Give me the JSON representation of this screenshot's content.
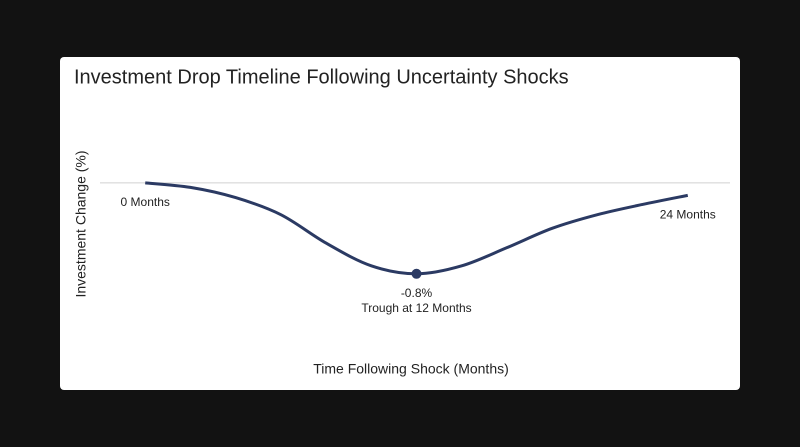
{
  "chart_data": {
    "type": "line",
    "title": "Investment Drop Timeline Following Uncertainty Shocks",
    "x_label": "Time Following Shock (Months)",
    "y_label": "Investment Change (%)",
    "x": [
      0,
      2,
      4,
      6,
      8,
      10,
      12,
      14,
      16,
      18,
      20,
      22,
      24
    ],
    "series": [
      {
        "color": "#2b3a63",
        "values": [
          0,
          -0.04,
          -0.13,
          -0.28,
          -0.53,
          -0.73,
          -0.8,
          -0.73,
          -0.57,
          -0.4,
          -0.28,
          -0.19,
          -0.11
        ],
        "value_labels": [
          null,
          null,
          null,
          null,
          null,
          null,
          "-0.8%",
          null,
          null,
          null,
          null,
          null,
          null
        ]
      }
    ],
    "annotations": [
      {
        "text": "0 Months",
        "x": 0
      },
      {
        "text": "Trough at 12 Months",
        "x": 12
      },
      {
        "text": "24 Months",
        "x": 24
      }
    ],
    "xlim": [
      -2,
      26
    ],
    "ylim": [
      -1.4,
      0.5
    ],
    "zero_line": true
  }
}
